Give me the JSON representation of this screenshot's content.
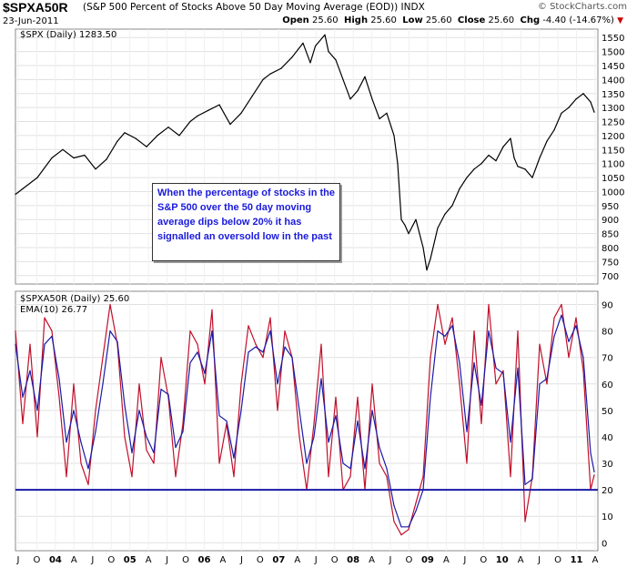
{
  "header": {
    "symbol": "$SPXA50R",
    "description": "(S&P 500 Percent of Stocks Above 50 Day Moving Average (EOD)) INDX",
    "date": "23-Jun-2011",
    "brand": "© StockCharts.com",
    "open_label": "Open",
    "open": "25.60",
    "high_label": "High",
    "high": "25.60",
    "low_label": "Low",
    "low": "25.60",
    "close_label": "Close",
    "close": "25.60",
    "chg_label": "Chg",
    "chg": "-4.40 (-14.67%)"
  },
  "annotation": "When the percentage of stocks in the S&P 500 over the 50 day moving average dips below 20% it has signalled an oversold low in the past",
  "colors": {
    "price": "#000000",
    "breadth": "#c0102a",
    "ema": "#1a1aa8",
    "threshold": "#1a1aa8",
    "grid": "#e0e0e0"
  },
  "chart_data": [
    {
      "type": "line",
      "legend": "$SPX (Daily) 1283.50",
      "yticks": [
        700,
        750,
        800,
        850,
        900,
        950,
        1000,
        1050,
        1100,
        1150,
        1200,
        1250,
        1300,
        1350,
        1400,
        1450,
        1500,
        1550
      ],
      "ylim": [
        670,
        1580
      ],
      "x": [
        2003.5,
        2003.6,
        2003.8,
        2004.0,
        2004.15,
        2004.3,
        2004.45,
        2004.6,
        2004.75,
        2004.9,
        2005.0,
        2005.15,
        2005.3,
        2005.45,
        2005.6,
        2005.75,
        2005.9,
        2006.0,
        2006.15,
        2006.3,
        2006.45,
        2006.6,
        2006.75,
        2006.9,
        2007.0,
        2007.15,
        2007.3,
        2007.45,
        2007.55,
        2007.62,
        2007.75,
        2007.8,
        2007.9,
        2008.0,
        2008.1,
        2008.2,
        2008.3,
        2008.4,
        2008.5,
        2008.6,
        2008.7,
        2008.75,
        2008.8,
        2008.85,
        2008.9,
        2009.0,
        2009.1,
        2009.15,
        2009.2,
        2009.3,
        2009.4,
        2009.5,
        2009.6,
        2009.7,
        2009.8,
        2009.9,
        2010.0,
        2010.1,
        2010.2,
        2010.3,
        2010.35,
        2010.4,
        2010.5,
        2010.6,
        2010.7,
        2010.8,
        2010.9,
        2011.0,
        2011.1,
        2011.2,
        2011.3,
        2011.4,
        2011.45
      ],
      "values": [
        990,
        1010,
        1050,
        1120,
        1150,
        1120,
        1130,
        1080,
        1115,
        1180,
        1210,
        1190,
        1160,
        1200,
        1230,
        1200,
        1250,
        1270,
        1290,
        1310,
        1240,
        1280,
        1340,
        1400,
        1420,
        1440,
        1480,
        1530,
        1460,
        1520,
        1560,
        1500,
        1470,
        1400,
        1330,
        1360,
        1410,
        1330,
        1260,
        1280,
        1200,
        1100,
        900,
        880,
        850,
        900,
        800,
        720,
        760,
        870,
        920,
        950,
        1010,
        1050,
        1080,
        1100,
        1130,
        1110,
        1160,
        1190,
        1120,
        1090,
        1080,
        1050,
        1120,
        1180,
        1220,
        1280,
        1300,
        1330,
        1350,
        1320,
        1283.5
      ]
    },
    {
      "type": "line",
      "legend_main": "$SPXA50R (Daily) 25.60",
      "legend_ema": "EMA(10) 26.77",
      "yticks": [
        0,
        10,
        20,
        30,
        40,
        50,
        60,
        70,
        80,
        90
      ],
      "ylim": [
        -3,
        95
      ],
      "threshold": 20,
      "x": [
        2003.5,
        2003.6,
        2003.7,
        2003.8,
        2003.9,
        2004.0,
        2004.1,
        2004.2,
        2004.3,
        2004.4,
        2004.5,
        2004.6,
        2004.7,
        2004.8,
        2004.9,
        2005.0,
        2005.1,
        2005.2,
        2005.3,
        2005.4,
        2005.5,
        2005.6,
        2005.7,
        2005.8,
        2005.9,
        2006.0,
        2006.1,
        2006.2,
        2006.3,
        2006.4,
        2006.5,
        2006.6,
        2006.7,
        2006.8,
        2006.9,
        2007.0,
        2007.1,
        2007.2,
        2007.3,
        2007.4,
        2007.5,
        2007.6,
        2007.7,
        2007.8,
        2007.9,
        2008.0,
        2008.1,
        2008.2,
        2008.3,
        2008.4,
        2008.5,
        2008.6,
        2008.7,
        2008.8,
        2008.9,
        2009.0,
        2009.1,
        2009.2,
        2009.3,
        2009.4,
        2009.5,
        2009.6,
        2009.7,
        2009.8,
        2009.9,
        2010.0,
        2010.1,
        2010.2,
        2010.3,
        2010.4,
        2010.5,
        2010.6,
        2010.7,
        2010.8,
        2010.9,
        2011.0,
        2011.1,
        2011.2,
        2011.3,
        2011.4,
        2011.45
      ],
      "values": [
        80,
        45,
        75,
        40,
        85,
        80,
        55,
        25,
        60,
        30,
        22,
        50,
        70,
        90,
        75,
        40,
        25,
        60,
        35,
        30,
        70,
        55,
        25,
        45,
        80,
        75,
        60,
        88,
        30,
        45,
        25,
        60,
        82,
        75,
        70,
        85,
        50,
        80,
        70,
        40,
        20,
        45,
        75,
        25,
        55,
        20,
        25,
        55,
        20,
        60,
        30,
        25,
        8,
        3,
        5,
        15,
        25,
        70,
        90,
        75,
        85,
        60,
        30,
        80,
        45,
        90,
        60,
        65,
        25,
        80,
        8,
        25,
        75,
        60,
        85,
        90,
        70,
        85,
        65,
        20,
        25.6
      ],
      "ema": [
        75,
        55,
        65,
        50,
        75,
        78,
        62,
        38,
        50,
        38,
        28,
        42,
        60,
        80,
        76,
        52,
        34,
        50,
        40,
        34,
        58,
        56,
        36,
        42,
        68,
        72,
        64,
        80,
        48,
        46,
        32,
        50,
        72,
        74,
        72,
        80,
        60,
        74,
        70,
        50,
        30,
        40,
        62,
        38,
        48,
        30,
        28,
        46,
        28,
        50,
        36,
        28,
        14,
        6,
        6,
        12,
        20,
        55,
        80,
        78,
        82,
        68,
        42,
        68,
        52,
        80,
        66,
        64,
        38,
        66,
        22,
        24,
        60,
        62,
        78,
        86,
        76,
        82,
        70,
        34,
        26.77
      ]
    }
  ],
  "x_axis": {
    "labels": [
      "J",
      "O",
      "04",
      "A",
      "J",
      "O",
      "05",
      "A",
      "J",
      "O",
      "06",
      "A",
      "J",
      "O",
      "07",
      "A",
      "J",
      "O",
      "08",
      "A",
      "J",
      "O",
      "09",
      "A",
      "J",
      "O",
      "10",
      "A",
      "J",
      "O",
      "11",
      "A"
    ],
    "start": 2003.5,
    "end": 2011.5
  }
}
